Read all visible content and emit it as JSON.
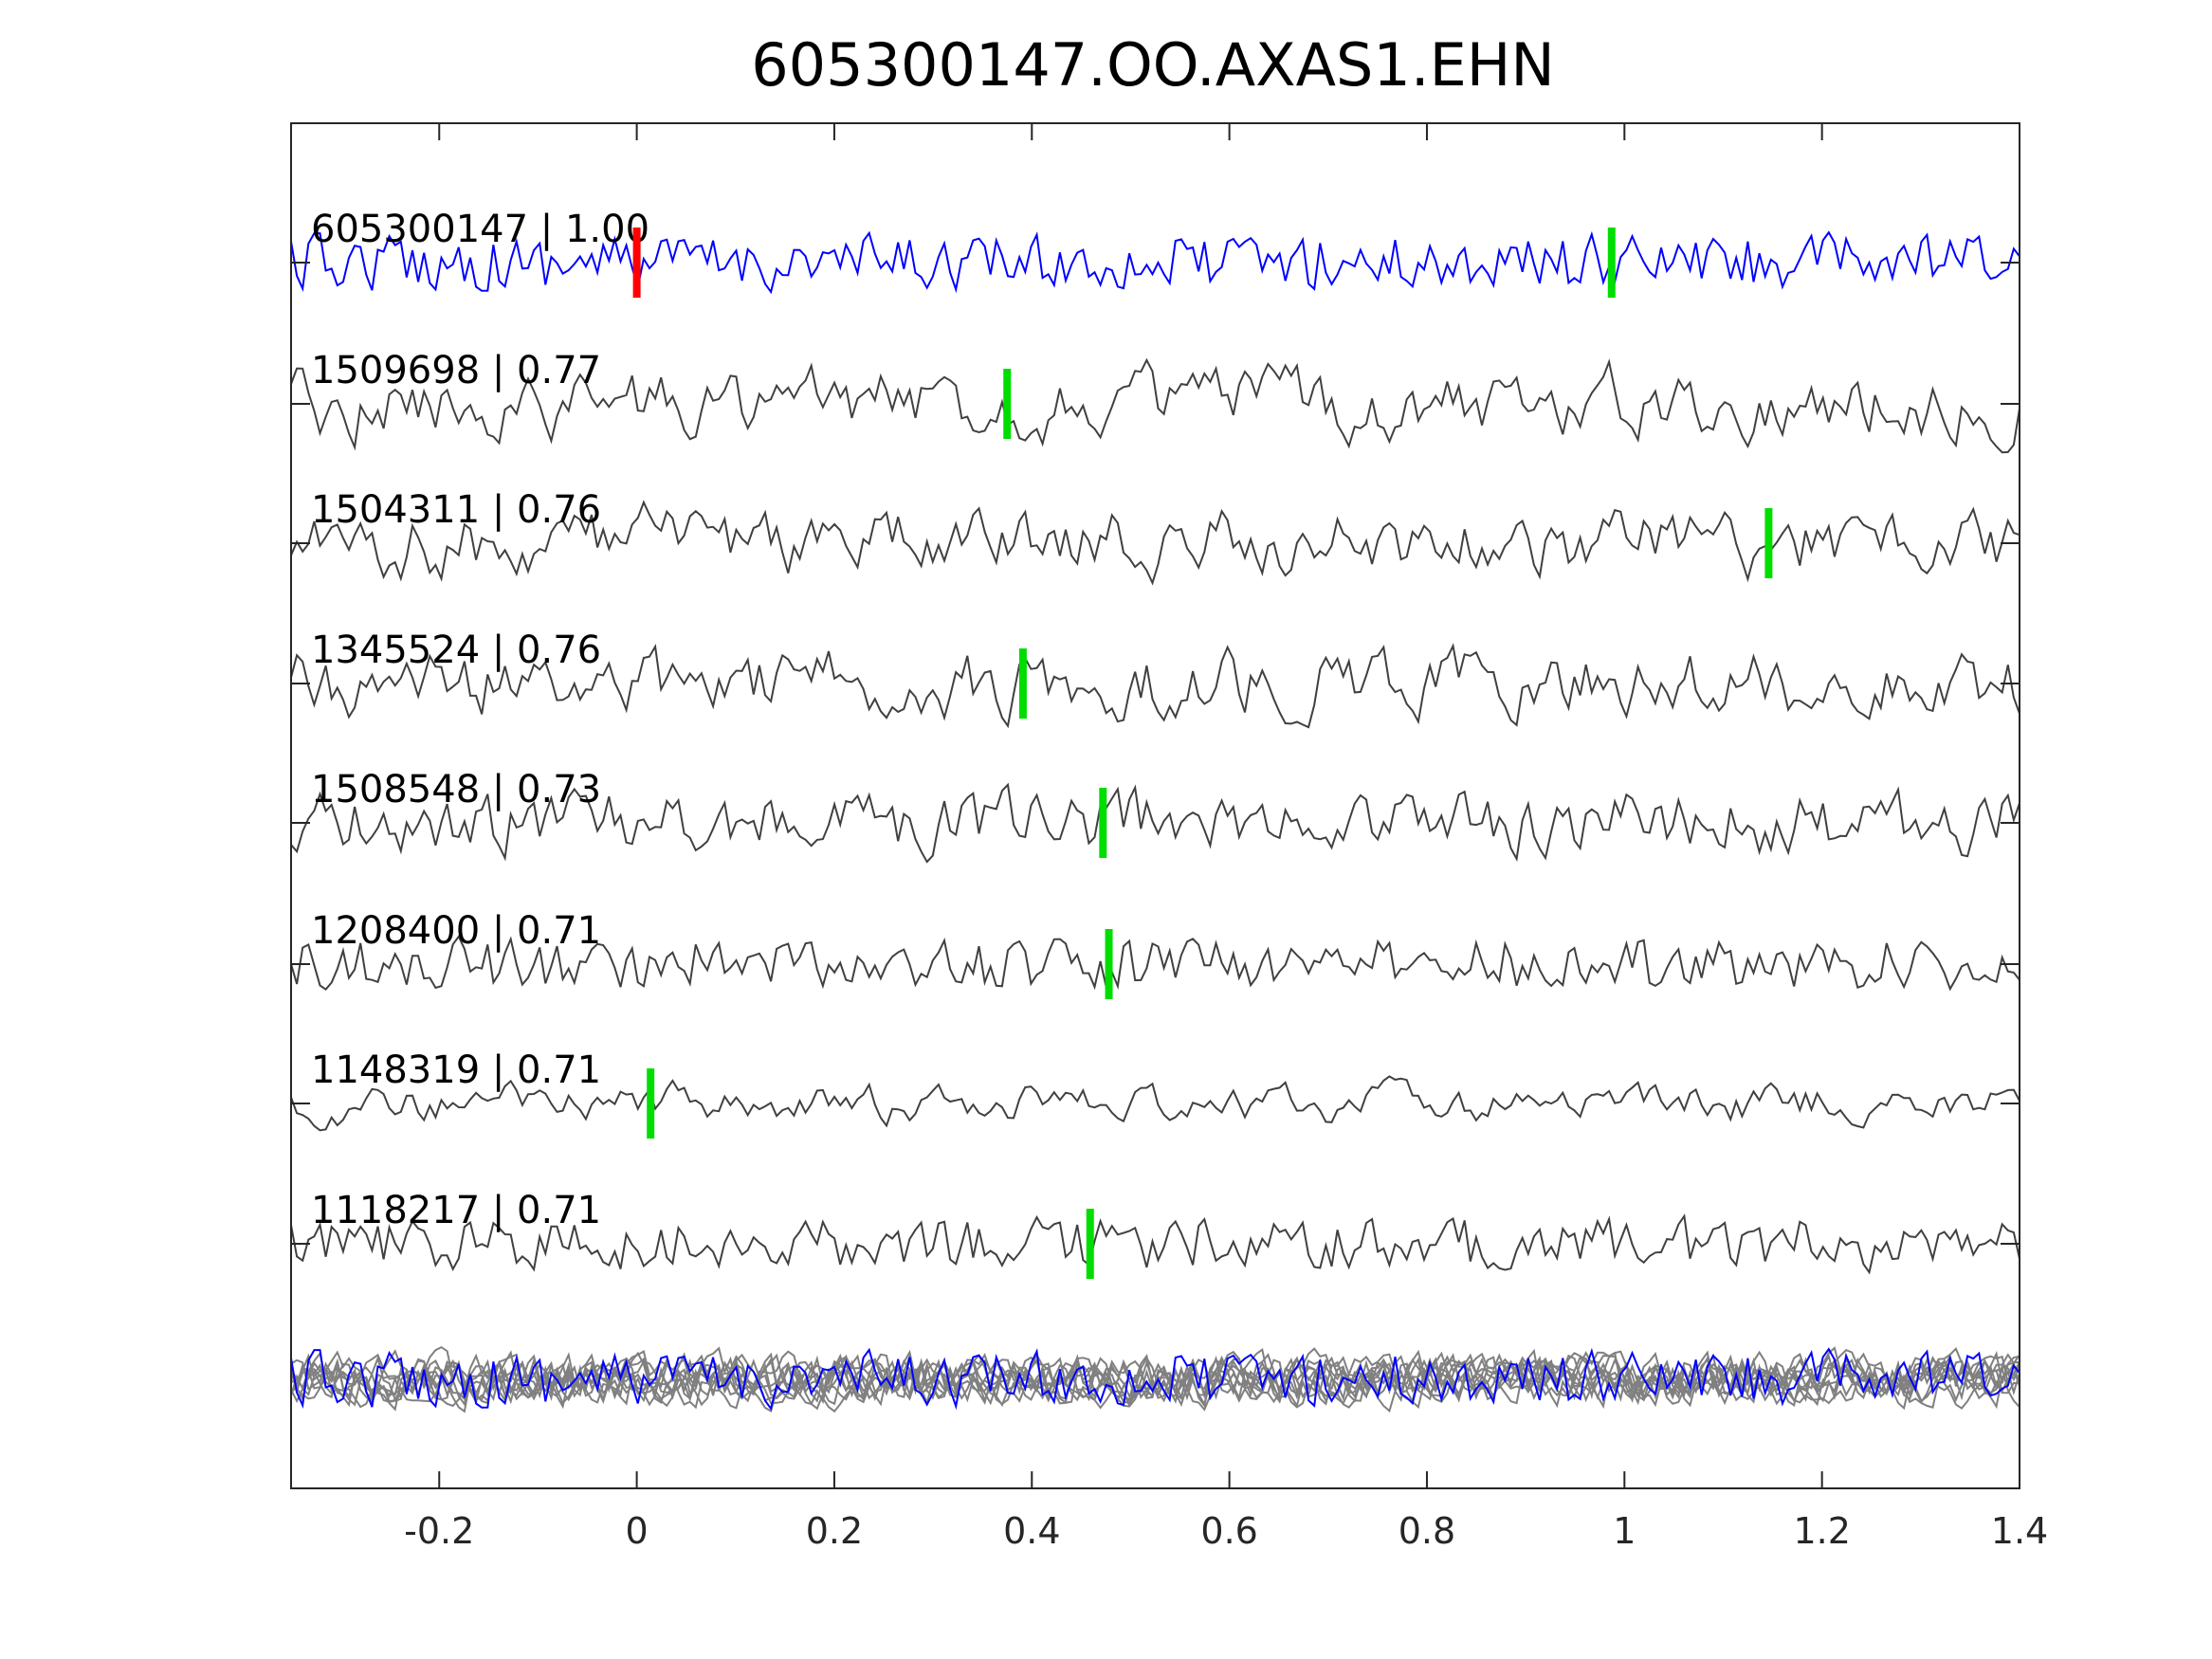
{
  "chart_data": {
    "type": "line",
    "title": "605300147.OO.AXAS1.EHN",
    "xlabel": "",
    "ylabel": "",
    "xlim": [
      -0.35,
      1.4
    ],
    "xticks": [
      -0.2,
      0,
      0.2,
      0.4,
      0.6,
      0.8,
      1,
      1.2,
      1.4
    ],
    "xtick_labels": [
      "-0.2",
      "0",
      "0.2",
      "0.4",
      "0.6",
      "0.8",
      "1",
      "1.2",
      "1.4"
    ],
    "grid": false,
    "colors": {
      "template": "#0000ff",
      "trace": "#404040",
      "stack": "#808080",
      "pick": "#00dd00",
      "origin_pick": "#ff0000",
      "axis": "#262626"
    },
    "traces": [
      {
        "id": "605300147",
        "cc": "1.00",
        "label": "605300147 | 1.00",
        "pick": 0.987,
        "origin_pick": 0,
        "template": true
      },
      {
        "id": "1509698",
        "cc": "0.77",
        "label": "1509698 | 0.77",
        "pick": 0.375
      },
      {
        "id": "1504311",
        "cc": "0.76",
        "label": "1504311 | 0.76",
        "pick": 1.146
      },
      {
        "id": "1345524",
        "cc": "0.76",
        "label": "1345524 | 0.76",
        "pick": 0.391
      },
      {
        "id": "1508548",
        "cc": "0.73",
        "label": "1508548 | 0.73",
        "pick": 0.472
      },
      {
        "id": "1208400",
        "cc": "0.71",
        "label": "1208400 | 0.71",
        "pick": 0.478
      },
      {
        "id": "1148319",
        "cc": "0.71",
        "label": "1148319 | 0.71",
        "pick": 0.014
      },
      {
        "id": "1118217",
        "cc": "0.71",
        "label": "1118217 | 0.71",
        "pick": 0.459
      }
    ]
  }
}
